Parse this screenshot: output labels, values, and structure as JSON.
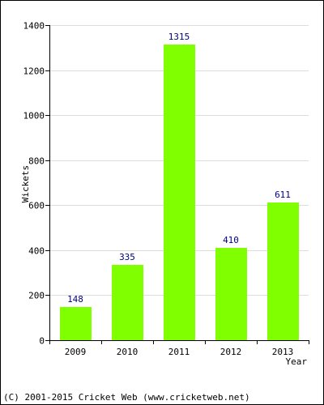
{
  "chart_data": {
    "type": "bar",
    "categories": [
      "2009",
      "2010",
      "2011",
      "2012",
      "2013"
    ],
    "values": [
      148,
      335,
      1315,
      410,
      611
    ],
    "data_labels": [
      "148",
      "335",
      "1315",
      "410",
      "611"
    ],
    "xlabel": "Year",
    "ylabel": "Wickets",
    "ylim": [
      0,
      1400
    ],
    "yticks": [
      "0",
      "200",
      "400",
      "600",
      "800",
      "1000",
      "1200",
      "1400"
    ],
    "grid": true,
    "legend": "none"
  },
  "footer": {
    "copyright": "(C) 2001-2015 Cricket Web (www.cricketweb.net)"
  },
  "colors": {
    "bar": "#80ff00",
    "grid": "#dddddd",
    "axis": "#000000",
    "data_label": "#000080",
    "text": "#000000"
  }
}
